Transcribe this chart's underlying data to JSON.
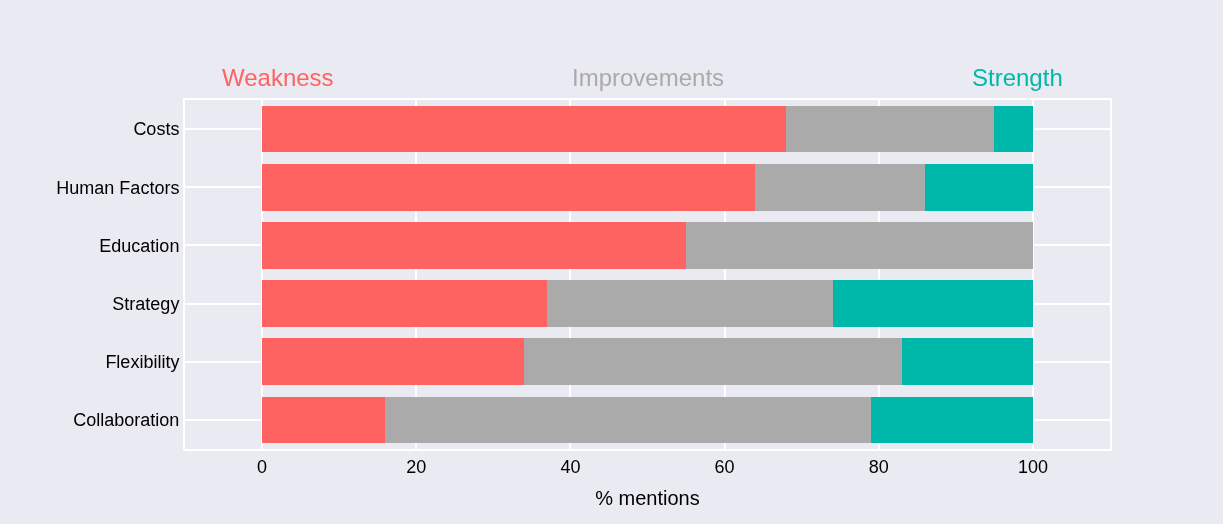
{
  "chart_data": {
    "type": "bar",
    "orientation": "horizontal",
    "stacked": true,
    "xlabel": "% mentions",
    "categories": [
      "Costs",
      "Human Factors",
      "Education",
      "Strategy",
      "Flexibility",
      "Collaboration"
    ],
    "series": [
      {
        "name": "Weakness",
        "color": "#fe6361",
        "values": [
          68,
          64,
          55,
          37,
          34,
          16
        ]
      },
      {
        "name": "Improvements",
        "color": "#aaaaaa",
        "values": [
          27,
          22,
          45,
          37,
          49,
          63
        ]
      },
      {
        "name": "Strength",
        "color": "#00b8a9",
        "values": [
          5,
          14,
          0,
          26,
          17,
          21
        ]
      }
    ],
    "xlim": [
      -10,
      110
    ],
    "xticks": [
      0,
      20,
      40,
      60,
      80,
      100
    ],
    "grid": true,
    "legend": "top"
  }
}
